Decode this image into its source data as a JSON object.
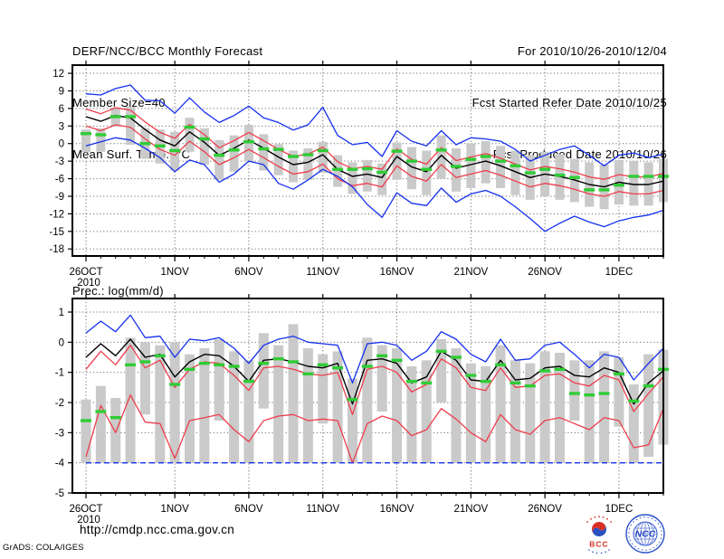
{
  "header": {
    "title": "DERF/NCC/BCC Monthly Forecast",
    "member_size": "Member Size=40",
    "for_range": "For 2010/10/26-2010/12/04",
    "refer_date": "Fcst Started Refer Date 2010/10/25",
    "produced_date": "Fcst Produced Date 2010/10/26"
  },
  "footer": {
    "url": "http://cmdp.ncc.cma.gov.cn",
    "credit": "GrADS: COLA/IGES",
    "logos": {
      "bcc": {
        "label": "BCC"
      },
      "ncc": {
        "label": "NCC"
      }
    }
  },
  "colors": {
    "envelope_blue": "#1430ee",
    "spread_red": "#ee3d4b",
    "mean_black": "#000000",
    "obs_green": "#2fcc35",
    "bar_gray": "#cacaca",
    "grid_gray": "#6e6e6e",
    "frame_black": "#000000"
  },
  "chart_data": [
    {
      "type": "line",
      "name": "surface-temperature-chart",
      "title": "Mean Surf. Temp.: °C",
      "xlabel": "",
      "ylabel": "°C",
      "days": 40,
      "ylim": [
        -19.2,
        13.4
      ],
      "yticks": [
        12,
        9,
        6,
        3,
        0,
        -3,
        -6,
        -9,
        -12,
        -15,
        -18
      ],
      "grid": "dotted",
      "xticks": [
        {
          "day": 0,
          "label": "26OCT",
          "sub": "2010"
        },
        {
          "day": 6,
          "label": "1NOV"
        },
        {
          "day": 11,
          "label": "6NOV"
        },
        {
          "day": 16,
          "label": "11NOV"
        },
        {
          "day": 21,
          "label": "16NOV"
        },
        {
          "day": 26,
          "label": "21NOV"
        },
        {
          "day": 31,
          "label": "26NOV"
        },
        {
          "day": 36,
          "label": "1DEC"
        }
      ],
      "bars": {
        "name": "ensemble-spread-bar",
        "hi": [
          2.4,
          2.6,
          6.2,
          6.3,
          2.6,
          2.4,
          2.0,
          4.4,
          2.6,
          0.6,
          1.4,
          3.2,
          1.6,
          -0.1,
          -1.2,
          -0.8,
          0.3,
          -2.0,
          -3.2,
          -2.8,
          -3.4,
          0.2,
          -0.6,
          -1.2,
          1.4,
          -0.8,
          0.0,
          0.4,
          -0.4,
          -1.2,
          -2.0,
          -1.4,
          -1.8,
          -2.6,
          -3.2,
          -3.6,
          -2.8,
          -3.0,
          -3.2,
          -2.6
        ],
        "lo": [
          -1.5,
          -1.4,
          2.9,
          -0.2,
          -2.6,
          -3.4,
          -4.6,
          -1.4,
          -3.6,
          -6.2,
          -4.8,
          -3.0,
          -4.6,
          -5.4,
          -6.6,
          -6.2,
          -5.0,
          -7.4,
          -8.6,
          -8.2,
          -8.8,
          -6.2,
          -7.8,
          -8.8,
          -6.0,
          -8.2,
          -7.6,
          -6.8,
          -7.6,
          -8.8,
          -9.6,
          -9.0,
          -9.6,
          -10.0,
          -10.8,
          -11.2,
          -10.4,
          -10.6,
          -10.6,
          -10.0
        ]
      },
      "series": [
        {
          "name": "ensemble-max",
          "color_key": "envelope_blue",
          "dashed": false,
          "values": [
            8.5,
            8.3,
            9.4,
            10.0,
            7.4,
            7.3,
            5.2,
            7.8,
            5.4,
            3.6,
            4.8,
            6.4,
            4.4,
            3.6,
            2.3,
            3.2,
            6.2,
            1.4,
            -0.2,
            0.2,
            -2.2,
            2.2,
            0.4,
            -0.4,
            2.2,
            -0.2,
            1.0,
            0.8,
            0.4,
            -1.0,
            -3.0,
            -2.0,
            -1.0,
            -0.4,
            -2.0,
            -3.8,
            -2.0,
            -1.6,
            -2.4,
            -1.8
          ]
        },
        {
          "name": "upper-spread",
          "color_key": "spread_red",
          "dashed": false,
          "values": [
            5.9,
            5.1,
            6.1,
            5.7,
            3.7,
            1.9,
            0.9,
            3.3,
            1.5,
            -0.7,
            0.5,
            1.9,
            0.5,
            -1.0,
            -2.2,
            -1.8,
            -0.6,
            -3.1,
            -4.3,
            -3.9,
            -4.4,
            -0.9,
            -2.7,
            -3.5,
            -0.7,
            -2.9,
            -2.3,
            -1.7,
            -2.5,
            -3.5,
            -4.5,
            -3.9,
            -4.3,
            -4.9,
            -5.7,
            -6.1,
            -5.3,
            -5.7,
            -5.7,
            -5.1
          ]
        },
        {
          "name": "lower-spread",
          "color_key": "spread_red",
          "dashed": false,
          "values": [
            3.0,
            2.2,
            3.2,
            2.8,
            0.8,
            -1.0,
            -2.0,
            0.4,
            -1.4,
            -3.6,
            -2.4,
            -1.0,
            -2.4,
            -3.9,
            -5.2,
            -4.8,
            -3.5,
            -6.0,
            -7.2,
            -6.8,
            -7.4,
            -3.8,
            -5.6,
            -6.4,
            -3.6,
            -5.8,
            -5.2,
            -4.6,
            -5.4,
            -6.4,
            -7.4,
            -6.8,
            -7.2,
            -7.8,
            -8.6,
            -9.0,
            -8.2,
            -8.6,
            -8.6,
            -8.0
          ]
        },
        {
          "name": "ensemble-min",
          "color_key": "envelope_blue",
          "dashed": false,
          "values": [
            -0.4,
            0.3,
            1.0,
            0.6,
            -0.8,
            -2.4,
            -4.8,
            -2.8,
            -3.6,
            -6.6,
            -5.2,
            -3.0,
            -3.6,
            -6.8,
            -7.8,
            -6.2,
            -4.4,
            -5.6,
            -7.4,
            -10.4,
            -12.6,
            -8.4,
            -10.2,
            -10.6,
            -7.6,
            -10.0,
            -8.6,
            -8.0,
            -9.0,
            -10.8,
            -12.8,
            -15.0,
            -13.6,
            -12.4,
            -13.4,
            -14.2,
            -13.2,
            -12.6,
            -12.2,
            -11.4
          ]
        },
        {
          "name": "ensemble-mean",
          "color_key": "mean_black",
          "dashed": false,
          "values": [
            4.6,
            3.8,
            4.8,
            4.4,
            2.4,
            0.6,
            -0.4,
            2.0,
            0.2,
            -2.0,
            -0.8,
            0.6,
            -0.8,
            -2.3,
            -3.6,
            -3.2,
            -1.9,
            -4.4,
            -5.6,
            -5.2,
            -5.8,
            -2.2,
            -4.0,
            -4.8,
            -2.0,
            -4.2,
            -3.6,
            -3.0,
            -3.8,
            -4.8,
            -5.8,
            -5.2,
            -5.6,
            -6.2,
            -7.0,
            -7.4,
            -6.6,
            -7.0,
            -7.0,
            -6.4
          ]
        }
      ],
      "obs": {
        "name": "observation-dash",
        "color_key": "obs_green",
        "values": [
          1.7,
          1.5,
          4.6,
          4.6,
          0.0,
          -0.4,
          -1.2,
          2.8,
          0.8,
          -2.0,
          -1.1,
          0.3,
          -0.9,
          -1.0,
          -2.2,
          -1.9,
          -1.2,
          -4.4,
          -4.4,
          -4.3,
          -4.9,
          -1.3,
          -3.0,
          -4.4,
          -1.1,
          -3.9,
          -2.7,
          -2.2,
          -3.0,
          -3.8,
          -5.0,
          -4.4,
          -5.4,
          -5.8,
          -7.9,
          -7.9,
          -7.1,
          -5.6,
          -5.6,
          -5.6
        ]
      }
    },
    {
      "type": "line",
      "name": "precipitation-chart",
      "title": "Prec.: log(mm/d)",
      "xlabel": "",
      "ylabel": "log(mm/d)",
      "days": 40,
      "ylim": [
        -5.0,
        1.45
      ],
      "yticks": [
        1,
        0,
        -1,
        -2,
        -3,
        -4,
        -5
      ],
      "grid": "dotted",
      "xticks": [
        {
          "day": 0,
          "label": "26OCT",
          "sub": "2010"
        },
        {
          "day": 6,
          "label": "1NOV"
        },
        {
          "day": 11,
          "label": "6NOV"
        },
        {
          "day": 16,
          "label": "11NOV"
        },
        {
          "day": 21,
          "label": "16NOV"
        },
        {
          "day": 26,
          "label": "21NOV"
        },
        {
          "day": 31,
          "label": "26NOV"
        },
        {
          "day": 36,
          "label": "1DEC"
        }
      ],
      "bars": {
        "name": "ensemble-spread-bar",
        "hi": [
          -1.9,
          -1.45,
          -1.85,
          0.15,
          0.0,
          -0.1,
          0.0,
          -0.4,
          -0.2,
          0.1,
          -0.3,
          -0.6,
          0.3,
          -0.1,
          0.6,
          -0.2,
          -0.4,
          -0.3,
          -1.2,
          0.15,
          -0.1,
          -0.2,
          -0.8,
          -0.6,
          0.1,
          -0.2,
          -0.7,
          -0.8,
          -0.1,
          -0.6,
          -0.7,
          -0.3,
          -0.35,
          -0.6,
          -0.6,
          -0.3,
          -0.5,
          -1.4,
          -0.4,
          -0.25
        ],
        "lo": [
          -4,
          -4,
          -4,
          -4,
          -2.4,
          -4,
          -4,
          -4,
          -4,
          -2.6,
          -4,
          -4,
          -2.2,
          -4,
          -4,
          -4,
          -2.7,
          -4,
          -4,
          -4,
          -2.3,
          -4,
          -4,
          -4,
          -2.0,
          -4,
          -4,
          -4,
          -4,
          -4,
          -4,
          -4,
          -4,
          -2.6,
          -4,
          -4,
          -2.8,
          -4,
          -3.8,
          -3.4
        ]
      },
      "series": [
        {
          "name": "ensemble-max",
          "color_key": "envelope_blue",
          "dashed": false,
          "values": [
            0.3,
            0.7,
            0.35,
            0.9,
            0.15,
            0.2,
            -0.5,
            0.1,
            0.05,
            0.15,
            -0.2,
            -0.7,
            -0.1,
            0.1,
            0.2,
            0.0,
            -0.05,
            -0.1,
            -1.35,
            -0.05,
            0.0,
            -0.1,
            -0.6,
            -0.3,
            0.35,
            0.1,
            -0.4,
            -0.65,
            0.1,
            -0.6,
            -0.55,
            -0.1,
            0.0,
            -0.4,
            -0.85,
            -0.4,
            -0.5,
            -1.25,
            -0.7,
            -0.2
          ]
        },
        {
          "name": "upper-spread",
          "color_key": "spread_red",
          "dashed": false,
          "values": [
            -0.9,
            -0.3,
            -0.75,
            -0.1,
            -0.85,
            -0.6,
            -1.5,
            -0.9,
            -0.65,
            -0.7,
            -1.1,
            -1.6,
            -0.85,
            -0.8,
            -0.9,
            -1.05,
            -1.1,
            -1.0,
            -2.4,
            -0.9,
            -0.8,
            -1.0,
            -1.65,
            -1.4,
            -0.55,
            -0.85,
            -1.5,
            -1.6,
            -0.85,
            -1.5,
            -1.45,
            -1.1,
            -1.05,
            -1.35,
            -1.45,
            -1.1,
            -1.25,
            -2.3,
            -1.7,
            -1.15
          ]
        },
        {
          "name": "lower-spread",
          "color_key": "spread_red",
          "dashed": false,
          "values": [
            -3.8,
            -2.1,
            -3.0,
            -1.75,
            -2.65,
            -2.7,
            -3.85,
            -2.6,
            -2.5,
            -2.4,
            -2.9,
            -3.3,
            -2.6,
            -2.45,
            -2.4,
            -2.6,
            -2.55,
            -2.6,
            -4.0,
            -2.7,
            -2.45,
            -2.6,
            -3.1,
            -2.9,
            -2.2,
            -2.55,
            -3.0,
            -3.3,
            -2.4,
            -2.9,
            -3.05,
            -2.6,
            -2.5,
            -2.7,
            -2.9,
            -2.5,
            -2.6,
            -3.5,
            -3.4,
            -2.2
          ]
        },
        {
          "name": "ensemble-min",
          "color_key": "envelope_blue",
          "dashed": true,
          "values": [
            -4,
            -4,
            -4,
            -4,
            -4,
            -4,
            -4,
            -4,
            -4,
            -4,
            -4,
            -4,
            -4,
            -4,
            -4,
            -4,
            -4,
            -4,
            -4,
            -4,
            -4,
            -4,
            -4,
            -4,
            -4,
            -4,
            -4,
            -4,
            -4,
            -4,
            -4,
            -4,
            -4,
            -4,
            -4,
            -4,
            -4,
            -4,
            -4,
            -4
          ]
        },
        {
          "name": "ensemble-mean",
          "color_key": "mean_black",
          "dashed": false,
          "values": [
            -0.5,
            -0.05,
            -0.45,
            0.1,
            -0.5,
            -0.4,
            -1.15,
            -0.65,
            -0.4,
            -0.45,
            -0.8,
            -1.3,
            -0.6,
            -0.55,
            -0.65,
            -0.8,
            -0.85,
            -0.7,
            -2.05,
            -0.6,
            -0.55,
            -0.7,
            -1.35,
            -1.15,
            -0.3,
            -0.6,
            -1.25,
            -1.3,
            -0.6,
            -1.25,
            -1.2,
            -0.85,
            -0.8,
            -1.1,
            -1.15,
            -0.85,
            -1.0,
            -2.05,
            -1.35,
            -0.95
          ]
        }
      ],
      "obs": {
        "name": "observation-dash",
        "color_key": "obs_green",
        "values": [
          -2.6,
          -2.3,
          -2.5,
          -0.75,
          -0.65,
          -0.45,
          -1.4,
          -0.9,
          -0.7,
          -0.75,
          -0.8,
          -1.3,
          -0.7,
          -0.55,
          -0.65,
          -1.05,
          -0.75,
          -0.85,
          -1.9,
          -0.8,
          -0.45,
          -0.6,
          -1.3,
          -1.35,
          -0.3,
          -0.5,
          -1.1,
          -1.3,
          -0.75,
          -1.35,
          -1.45,
          -0.95,
          -0.9,
          -1.7,
          -1.75,
          -1.7,
          -1.05,
          -1.95,
          -1.45,
          -0.9
        ]
      }
    }
  ]
}
